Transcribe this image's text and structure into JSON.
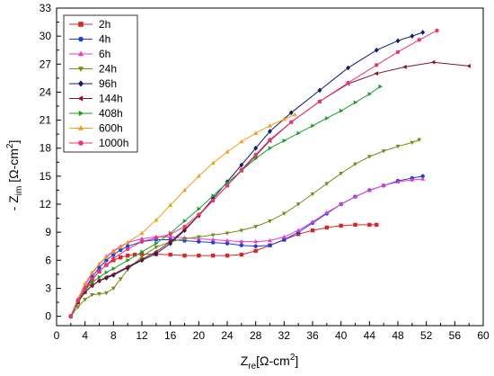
{
  "chart_data": {
    "type": "scatter",
    "xlabel_main": "Z",
    "xlabel_sub": "re",
    "xlabel_unit": "[Ω-cm",
    "xlabel_sup": "2",
    "xlabel_end": "]",
    "ylabel_prefix": "- Z",
    "ylabel_sub": "im",
    "ylabel_unit": " [Ω-cm",
    "ylabel_sup": "2",
    "ylabel_end": "]",
    "xlim": [
      0,
      60
    ],
    "ylim": [
      -1,
      33
    ],
    "xticks": [
      "0",
      "4",
      "8",
      "12",
      "16",
      "20",
      "24",
      "28",
      "32",
      "36",
      "40",
      "44",
      "48",
      "52",
      "56",
      "60"
    ],
    "yticks": [
      "0",
      "3",
      "6",
      "9",
      "12",
      "15",
      "18",
      "21",
      "24",
      "27",
      "30",
      "33"
    ],
    "grid": false,
    "legend_position": "top-left",
    "series": [
      {
        "name": "2h",
        "color": "#d62728",
        "marker": "square",
        "x": [
          2,
          3,
          4,
          5,
          6,
          7,
          8,
          9,
          10,
          11,
          12,
          14,
          16,
          18,
          20,
          22,
          24,
          26,
          28,
          30,
          32,
          34,
          36,
          38,
          40,
          42,
          44,
          45
        ],
        "y": [
          0,
          1.5,
          2.8,
          3.9,
          4.8,
          5.5,
          6.0,
          6.3,
          6.5,
          6.6,
          6.65,
          6.65,
          6.6,
          6.5,
          6.5,
          6.5,
          6.5,
          6.6,
          7.0,
          7.6,
          8.2,
          8.8,
          9.2,
          9.5,
          9.7,
          9.8,
          9.8,
          9.8
        ]
      },
      {
        "name": "4h",
        "color": "#1f3fd6",
        "marker": "circle",
        "x": [
          2,
          3,
          4,
          5,
          6,
          7,
          8,
          9,
          10,
          12,
          14,
          16,
          18,
          20,
          22,
          24,
          26,
          28,
          30,
          32,
          34,
          36,
          38,
          40,
          42,
          44,
          46,
          48,
          50,
          51.5
        ],
        "y": [
          0,
          1.6,
          3.0,
          4.2,
          5.2,
          6.0,
          6.6,
          7.1,
          7.5,
          8.0,
          8.2,
          8.2,
          8.1,
          8.0,
          7.9,
          7.8,
          7.6,
          7.5,
          7.6,
          8.2,
          9.0,
          10.0,
          11.0,
          12.0,
          12.8,
          13.5,
          14.0,
          14.5,
          14.8,
          15.0
        ]
      },
      {
        "name": "6h",
        "color": "#e83ad1",
        "marker": "triangle-up",
        "x": [
          2,
          3,
          4,
          5,
          6,
          7,
          8,
          9,
          10,
          12,
          14,
          16,
          18,
          20,
          22,
          24,
          26,
          28,
          30,
          32,
          34,
          36,
          38,
          40,
          42,
          44,
          46,
          48,
          50,
          51.5
        ],
        "y": [
          0,
          1.8,
          3.3,
          4.6,
          5.6,
          6.4,
          7.0,
          7.5,
          7.9,
          8.3,
          8.5,
          8.5,
          8.4,
          8.3,
          8.2,
          8.1,
          8.0,
          8.0,
          8.1,
          8.5,
          9.2,
          10.1,
          11.1,
          12.0,
          12.8,
          13.5,
          14.0,
          14.4,
          14.6,
          14.7
        ]
      },
      {
        "name": "24h",
        "color": "#7b8a16",
        "marker": "triangle-down",
        "x": [
          2,
          3,
          4,
          5,
          6,
          7,
          8,
          9,
          10,
          12,
          14,
          16,
          18,
          20,
          22,
          24,
          26,
          28,
          30,
          32,
          34,
          36,
          38,
          40,
          42,
          44,
          46,
          48,
          50,
          51
        ],
        "y": [
          0,
          1.0,
          1.8,
          2.3,
          2.4,
          2.5,
          3.0,
          4.0,
          5.0,
          6.4,
          7.4,
          8.0,
          8.3,
          8.5,
          8.7,
          8.9,
          9.2,
          9.6,
          10.2,
          11.0,
          12.0,
          13.1,
          14.2,
          15.3,
          16.3,
          17.1,
          17.7,
          18.2,
          18.6,
          18.9
        ]
      },
      {
        "name": "96h",
        "color": "#0b1f6e",
        "marker": "diamond",
        "x": [
          2,
          3,
          4,
          5,
          6,
          7,
          8,
          10,
          12,
          14,
          16,
          18,
          20,
          22,
          24,
          26,
          28,
          30,
          33,
          37,
          41,
          45,
          48,
          50,
          51.5
        ],
        "y": [
          0,
          1.5,
          2.6,
          3.3,
          3.8,
          4.1,
          4.4,
          5.2,
          6.0,
          6.7,
          7.8,
          9.2,
          10.8,
          12.6,
          14.4,
          16.2,
          18.0,
          19.8,
          21.8,
          24.2,
          26.6,
          28.5,
          29.5,
          30.0,
          30.4
        ]
      },
      {
        "name": "144h",
        "color": "#8b1020",
        "marker": "triangle-left",
        "x": [
          2,
          3,
          4,
          5,
          6,
          7,
          8,
          10,
          12,
          14,
          16,
          18,
          20,
          22,
          24,
          26,
          28,
          30,
          33,
          37,
          41,
          45,
          49,
          53,
          58
        ],
        "y": [
          0,
          1.5,
          2.6,
          3.3,
          3.8,
          4.2,
          4.5,
          5.3,
          6.1,
          6.9,
          8.0,
          9.3,
          10.8,
          12.4,
          14.0,
          15.6,
          17.2,
          18.8,
          20.8,
          23.0,
          24.9,
          26.0,
          26.7,
          27.2,
          26.8
        ]
      },
      {
        "name": "408h",
        "color": "#1e9e28",
        "marker": "triangle-right",
        "x": [
          2,
          3,
          4,
          5,
          6,
          7,
          8,
          10,
          12,
          14,
          16,
          18,
          20,
          22,
          24,
          26,
          28,
          30,
          32,
          34,
          36,
          38,
          40,
          42,
          44,
          45.5
        ],
        "y": [
          0,
          1.6,
          2.8,
          3.6,
          4.2,
          4.7,
          5.1,
          6.0,
          6.9,
          7.8,
          8.9,
          10.2,
          11.5,
          12.9,
          14.3,
          15.6,
          16.9,
          18.0,
          18.8,
          19.6,
          20.4,
          21.2,
          22.0,
          22.9,
          23.8,
          24.6
        ]
      },
      {
        "name": "600h",
        "color": "#f59a1a",
        "marker": "triangle-up",
        "x": [
          2,
          3,
          4,
          5,
          6,
          7,
          8,
          9,
          10,
          12,
          14,
          16,
          18,
          20,
          22,
          24,
          26,
          28,
          30,
          32,
          33.5
        ],
        "y": [
          0,
          1.9,
          3.5,
          4.7,
          5.6,
          6.3,
          6.9,
          7.4,
          7.9,
          8.9,
          10.3,
          11.9,
          13.5,
          15.0,
          16.4,
          17.6,
          18.7,
          19.6,
          20.4,
          21.1,
          21.6
        ]
      },
      {
        "name": "1000h",
        "color": "#e8357a",
        "marker": "circle",
        "x": [
          2,
          3,
          4,
          5,
          6,
          7,
          8,
          10,
          12,
          14,
          16,
          18,
          20,
          22,
          24,
          26,
          28,
          30,
          33,
          37,
          41,
          45,
          48,
          51,
          53.5
        ],
        "y": [
          0,
          1.7,
          3.0,
          4.0,
          4.8,
          5.5,
          6.2,
          7.2,
          8.0,
          8.4,
          8.8,
          9.6,
          10.9,
          12.4,
          14.0,
          15.7,
          17.3,
          18.9,
          20.8,
          23.0,
          25.0,
          26.9,
          28.3,
          29.6,
          30.6
        ]
      }
    ]
  }
}
